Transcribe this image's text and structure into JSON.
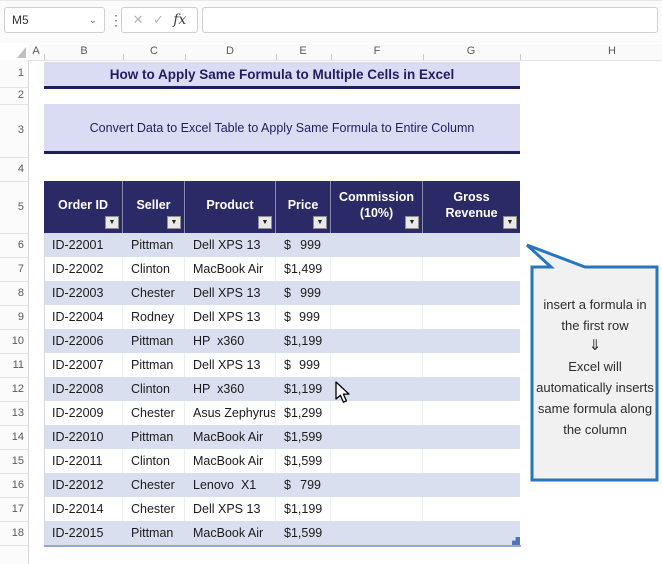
{
  "formula_bar": {
    "name_box_value": "M5",
    "cancel_icon": "✕",
    "enter_icon": "✓",
    "fx_label": "fx",
    "formula_value": ""
  },
  "grid": {
    "column_letters": [
      "A",
      "B",
      "C",
      "D",
      "E",
      "F",
      "G",
      "H"
    ],
    "row_numbers": [
      "1",
      "2",
      "3",
      "4",
      "5",
      "6",
      "7",
      "8",
      "9",
      "10",
      "11",
      "12",
      "13",
      "14",
      "15",
      "16",
      "17",
      "18"
    ]
  },
  "titles": {
    "main": "How to Apply Same Formula to Multiple Cells in Excel",
    "sub": "Convert Data to Excel Table to Apply Same Formula to Entire Column"
  },
  "table": {
    "columns": [
      "Order ID",
      "Seller",
      "Product",
      "Price",
      "Commission (10%)",
      "Gross Revenue"
    ],
    "currency_symbol": "$",
    "filter_icon": "▼",
    "rows": [
      {
        "order_id": "ID-22001",
        "seller": "Pittman",
        "product": "Dell XPS 13",
        "price": "999",
        "commission": "",
        "gross_revenue": ""
      },
      {
        "order_id": "ID-22002",
        "seller": "Clinton",
        "product": "MacBook Air",
        "price": "1,499",
        "commission": "",
        "gross_revenue": ""
      },
      {
        "order_id": "ID-22003",
        "seller": "Chester",
        "product": "Dell XPS 13",
        "price": "999",
        "commission": "",
        "gross_revenue": ""
      },
      {
        "order_id": "ID-22004",
        "seller": "Rodney",
        "product": "Dell XPS 13",
        "price": "999",
        "commission": "",
        "gross_revenue": ""
      },
      {
        "order_id": "ID-22006",
        "seller": "Pittman",
        "product": "HP  x360",
        "price": "1,199",
        "commission": "",
        "gross_revenue": ""
      },
      {
        "order_id": "ID-22007",
        "seller": "Pittman",
        "product": "Dell XPS 13",
        "price": "999",
        "commission": "",
        "gross_revenue": ""
      },
      {
        "order_id": "ID-22008",
        "seller": "Clinton",
        "product": "HP  x360",
        "price": "1,199",
        "commission": "",
        "gross_revenue": ""
      },
      {
        "order_id": "ID-22009",
        "seller": "Chester",
        "product": "Asus Zephyrus",
        "price": "1,299",
        "commission": "",
        "gross_revenue": ""
      },
      {
        "order_id": "ID-22010",
        "seller": "Pittman",
        "product": "MacBook Air",
        "price": "1,599",
        "commission": "",
        "gross_revenue": ""
      },
      {
        "order_id": "ID-22011",
        "seller": "Clinton",
        "product": "MacBook Air",
        "price": "1,599",
        "commission": "",
        "gross_revenue": ""
      },
      {
        "order_id": "ID-22012",
        "seller": "Chester",
        "product": "Lenovo  X1",
        "price": "799",
        "commission": "",
        "gross_revenue": ""
      },
      {
        "order_id": "ID-22014",
        "seller": "Chester",
        "product": "Dell XPS 13",
        "price": "1,199",
        "commission": "",
        "gross_revenue": ""
      },
      {
        "order_id": "ID-22015",
        "seller": "Pittman",
        "product": "MacBook Air",
        "price": "1,599",
        "commission": "",
        "gross_revenue": ""
      }
    ]
  },
  "callout": {
    "text_top": "insert a formula in the first row",
    "arrow": "⇓",
    "text_bottom": "Excel will automatically inserts same formula along the column"
  },
  "colors": {
    "header_bg": "#2a2a66",
    "band_fill": "#dadff0",
    "banner_fill": "#d9dcf2",
    "navy_text": "#1f1f5f",
    "callout_border": "#2776bd"
  }
}
